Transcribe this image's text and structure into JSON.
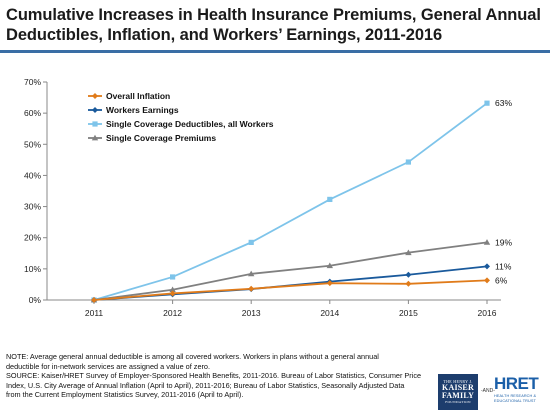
{
  "title": "Cumulative Increases in Health Insurance Premiums, General Annual Deductibles, Inflation, and Workers’ Earnings, 2011-2016",
  "chart_data": {
    "type": "line",
    "x": [
      "2011",
      "2012",
      "2013",
      "2014",
      "2015",
      "2016"
    ],
    "y_ticks": [
      "0%",
      "10%",
      "20%",
      "30%",
      "40%",
      "50%",
      "60%",
      "70%"
    ],
    "ylim": [
      0,
      70
    ],
    "grid": false,
    "legend_position": "top-left",
    "series": [
      {
        "name": "Overall Inflation",
        "color": "#e07b1a",
        "marker": "diamond",
        "values": [
          0,
          2.1,
          3.6,
          5.4,
          5.2,
          6.3
        ],
        "end_label": "6%"
      },
      {
        "name": "Workers Earnings",
        "color": "#1a5a9c",
        "marker": "diamond",
        "values": [
          0,
          1.8,
          3.5,
          5.9,
          8.1,
          10.8
        ],
        "end_label": "11%"
      },
      {
        "name": "Single Coverage Deductibles, all Workers",
        "color": "#7ec4ea",
        "marker": "square",
        "values": [
          0,
          7.4,
          18.5,
          32.3,
          44.3,
          63.2
        ],
        "end_label": "63%"
      },
      {
        "name": "Single Coverage Premiums",
        "color": "#808080",
        "marker": "triangle",
        "values": [
          0,
          3.3,
          8.4,
          11.0,
          15.2,
          18.5
        ],
        "end_label": "19%"
      }
    ]
  },
  "note_lines": [
    "NOTE:  Average general annual deductible  is among  all covered workers. Workers in plans without a general annual",
    "deductible for in-network services are assigned a value of zero.",
    "SOURCE:  Kaiser/HRET Survey of Employer-Sponsored Health Benefits, 2011-2016.   Bureau of Labor Statistics, Consumer Price",
    "Index, U.S. City Average of Annual Inflation (April to April), 2011-2016;  Bureau of Labor Statistics, Seasonally Adjusted Data",
    "from the Current Employment Statistics Survey, 2011-2016  (April to April)."
  ],
  "logos": {
    "kff_the": "THE HENRY J.",
    "kff_line1": "KAISER",
    "kff_line2": "FAMILY",
    "kff_foundation": "FOUNDATION",
    "and_text": "-AND-",
    "hret_main": "HRET",
    "hret_sub1": "HEALTH RESEARCH &",
    "hret_sub2": "EDUCATIONAL TRUST"
  }
}
